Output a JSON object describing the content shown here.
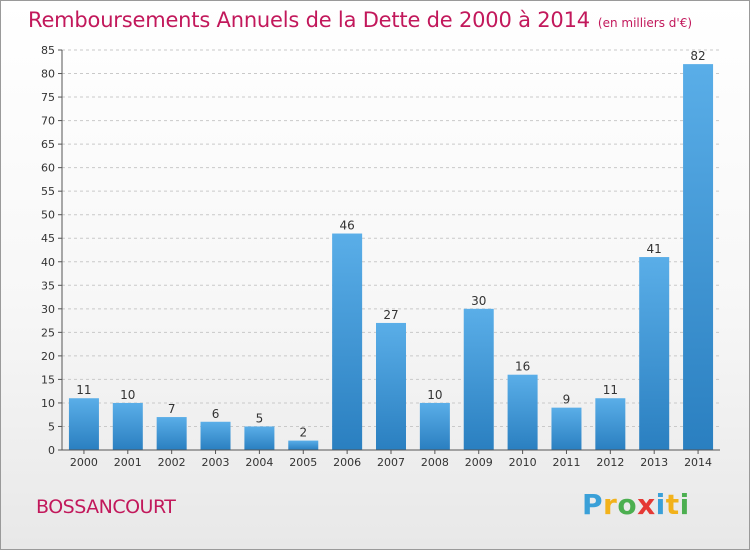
{
  "chart_data": {
    "type": "bar",
    "title": "Remboursements Annuels de la Dette de 2000 à 2014",
    "subtitle": "(en milliers d'€)",
    "categories": [
      "2000",
      "2001",
      "2002",
      "2003",
      "2004",
      "2005",
      "2006",
      "2007",
      "2008",
      "2009",
      "2010",
      "2011",
      "2012",
      "2013",
      "2014"
    ],
    "values": [
      11,
      10,
      7,
      6,
      5,
      2,
      46,
      27,
      10,
      30,
      16,
      9,
      11,
      41,
      82
    ],
    "ylim": [
      0,
      85
    ],
    "yticks": [
      0,
      5,
      10,
      15,
      20,
      25,
      30,
      35,
      40,
      45,
      50,
      55,
      60,
      65,
      70,
      75,
      80,
      85
    ],
    "grid": true,
    "data_labels": true,
    "xlabel": "",
    "ylabel": ""
  },
  "commune": "BOSSANCOURT",
  "logo": {
    "letters": [
      "P",
      "r",
      "o",
      "x",
      "i",
      "t",
      "i"
    ],
    "colors": [
      "#3aa0d8",
      "#f2b21b",
      "#4caf50",
      "#e53935",
      "#3aa0d8",
      "#f2b21b",
      "#4caf50"
    ]
  },
  "colors": {
    "title": "#c2185b",
    "bar_top": "#5aaee8",
    "bar_bottom": "#2a7fc0",
    "grid": "#c9c9c9",
    "axis": "#555555"
  }
}
